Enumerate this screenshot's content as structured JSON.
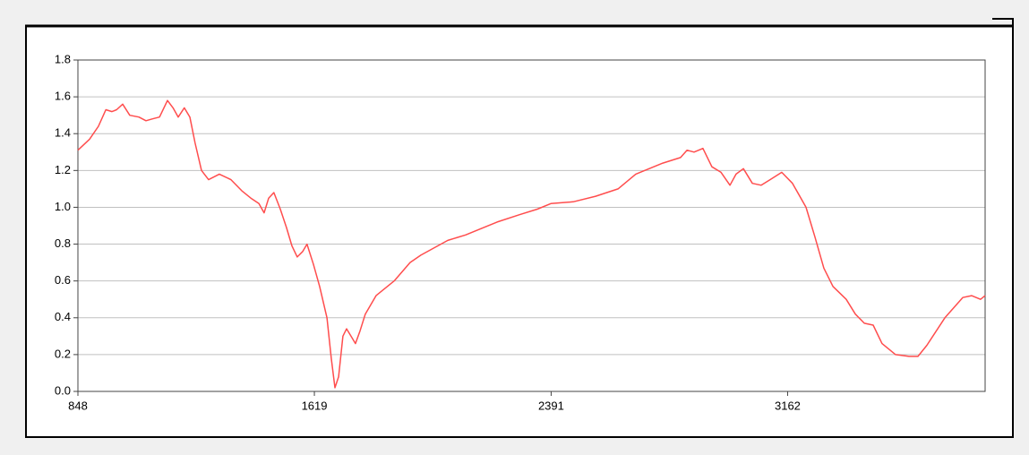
{
  "chart_data": {
    "type": "line",
    "x": [
      848,
      886,
      915,
      939,
      959,
      974,
      994,
      1017,
      1047,
      1070,
      1090,
      1114,
      1140,
      1158,
      1175,
      1195,
      1213,
      1230,
      1251,
      1274,
      1309,
      1347,
      1382,
      1412,
      1438,
      1455,
      1470,
      1487,
      1508,
      1528,
      1546,
      1563,
      1581,
      1595,
      1616,
      1636,
      1660,
      1674,
      1686,
      1698,
      1712,
      1724,
      1742,
      1753,
      1768,
      1785,
      1820,
      1879,
      1931,
      1966,
      2054,
      2112,
      2215,
      2288,
      2346,
      2390,
      2463,
      2536,
      2609,
      2667,
      2755,
      2813,
      2834,
      2857,
      2886,
      2915,
      2945,
      2974,
      2994,
      3018,
      3047,
      3076,
      3105,
      3143,
      3178,
      3222,
      3251,
      3280,
      3310,
      3353,
      3383,
      3412,
      3441,
      3470,
      3514,
      3558,
      3587,
      3616,
      3675,
      3733,
      3762,
      3791,
      3806
    ],
    "series": [
      {
        "color": "#ff4d4d",
        "values": [
          1.31,
          1.37,
          1.44,
          1.53,
          1.52,
          1.53,
          1.56,
          1.5,
          1.49,
          1.47,
          1.48,
          1.49,
          1.58,
          1.54,
          1.49,
          1.54,
          1.49,
          1.35,
          1.2,
          1.15,
          1.18,
          1.15,
          1.09,
          1.05,
          1.02,
          0.97,
          1.05,
          1.08,
          0.99,
          0.89,
          0.79,
          0.73,
          0.76,
          0.8,
          0.69,
          0.57,
          0.4,
          0.18,
          0.02,
          0.08,
          0.3,
          0.34,
          0.29,
          0.26,
          0.33,
          0.42,
          0.52,
          0.6,
          0.7,
          0.74,
          0.82,
          0.85,
          0.92,
          0.96,
          0.99,
          1.02,
          1.03,
          1.06,
          1.1,
          1.18,
          1.24,
          1.27,
          1.31,
          1.3,
          1.32,
          1.22,
          1.19,
          1.12,
          1.18,
          1.21,
          1.13,
          1.12,
          1.15,
          1.19,
          1.13,
          1.0,
          0.84,
          0.67,
          0.57,
          0.5,
          0.42,
          0.37,
          0.36,
          0.26,
          0.2,
          0.19,
          0.19,
          0.25,
          0.4,
          0.51,
          0.52,
          0.5,
          0.52
        ]
      }
    ],
    "xlim": [
      848,
      3806
    ],
    "xticks": [
      848,
      1619,
      2391,
      3162
    ],
    "ylim": [
      0,
      1.8
    ],
    "yticks": [
      {
        "value": 0,
        "label": "0.0"
      },
      0.2,
      0.4,
      0.6,
      0.8,
      {
        "value": 1,
        "label": "1.0"
      },
      1.2,
      1.4,
      1.6,
      1.8
    ],
    "grid": true
  }
}
